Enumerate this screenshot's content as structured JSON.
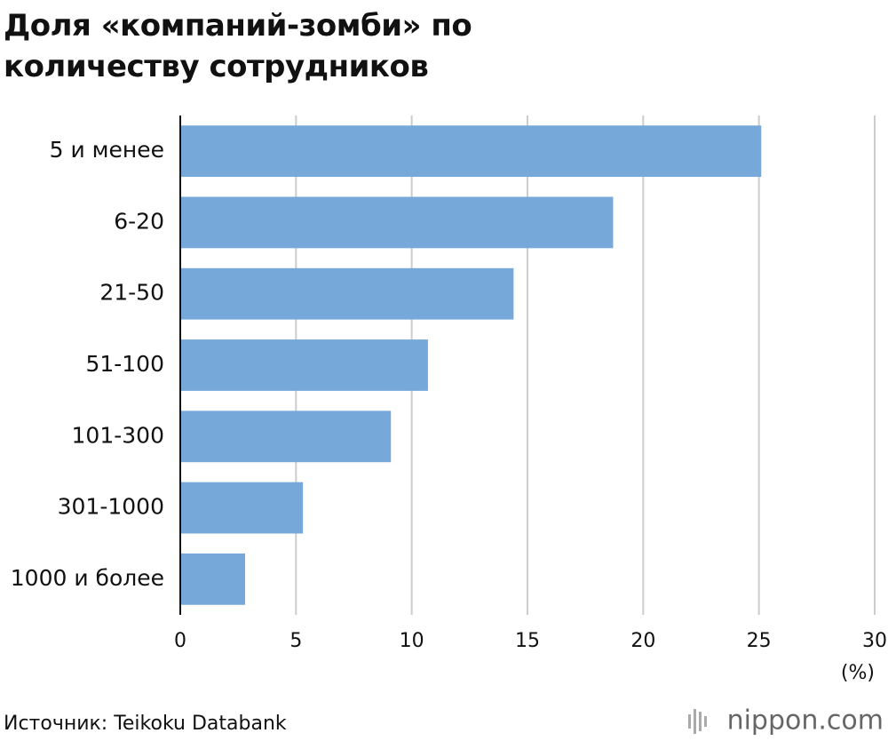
{
  "chart_data": {
    "type": "barh",
    "title": "Доля «компаний-зомби» по количеству сотрудников",
    "categories": [
      "5 и менее",
      "6-20",
      "21-50",
      "51-100",
      "101-300",
      "301-1000",
      "1000 и более"
    ],
    "values": [
      25.1,
      18.7,
      14.4,
      10.7,
      9.1,
      5.3,
      2.8
    ],
    "color": "#76a9d9",
    "xlim": [
      0,
      30
    ],
    "xticks": [
      0,
      5,
      10,
      15,
      20,
      25,
      30
    ],
    "grid": true,
    "x_unit": "(%)",
    "source": "Источник: Teikoku Databank",
    "logo": "nippon.com"
  }
}
